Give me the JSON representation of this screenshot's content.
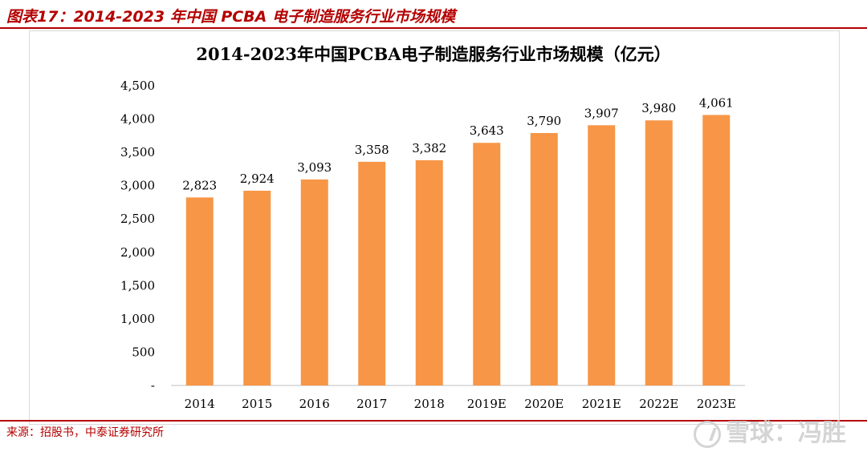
{
  "figure": {
    "caption": "图表17：2014-2023 年中国 PCBA 电子制造服务行业市场规模",
    "source": "来源：招股书，中泰证券研究所",
    "watermark": "雪球：冯胜"
  },
  "colors": {
    "bar": "#f79646",
    "accent": "#b40000",
    "axis": "#bfbfbf"
  },
  "chart_data": {
    "type": "bar",
    "title": "2014-2023年中国PCBA电子制造服务行业市场规模（亿元）",
    "categories": [
      "2014",
      "2015",
      "2016",
      "2017",
      "2018",
      "2019E",
      "2020E",
      "2021E",
      "2022E",
      "2023E"
    ],
    "values": [
      2823,
      2924,
      3093,
      3358,
      3382,
      3643,
      3790,
      3907,
      3980,
      4061
    ],
    "value_labels": [
      "2,823",
      "2,924",
      "3,093",
      "3,358",
      "3,382",
      "3,643",
      "3,790",
      "3,907",
      "3,980",
      "4,061"
    ],
    "y_ticks": [
      {
        "value": 0,
        "label": "-"
      },
      {
        "value": 500,
        "label": "500"
      },
      {
        "value": 1000,
        "label": "1,000"
      },
      {
        "value": 1500,
        "label": "1,500"
      },
      {
        "value": 2000,
        "label": "2,000"
      },
      {
        "value": 2500,
        "label": "2,500"
      },
      {
        "value": 3000,
        "label": "3,000"
      },
      {
        "value": 3500,
        "label": "3,500"
      },
      {
        "value": 4000,
        "label": "4,000"
      },
      {
        "value": 4500,
        "label": "4,500"
      }
    ],
    "ylim": [
      0,
      4500
    ],
    "grid": false,
    "legend": "none"
  }
}
